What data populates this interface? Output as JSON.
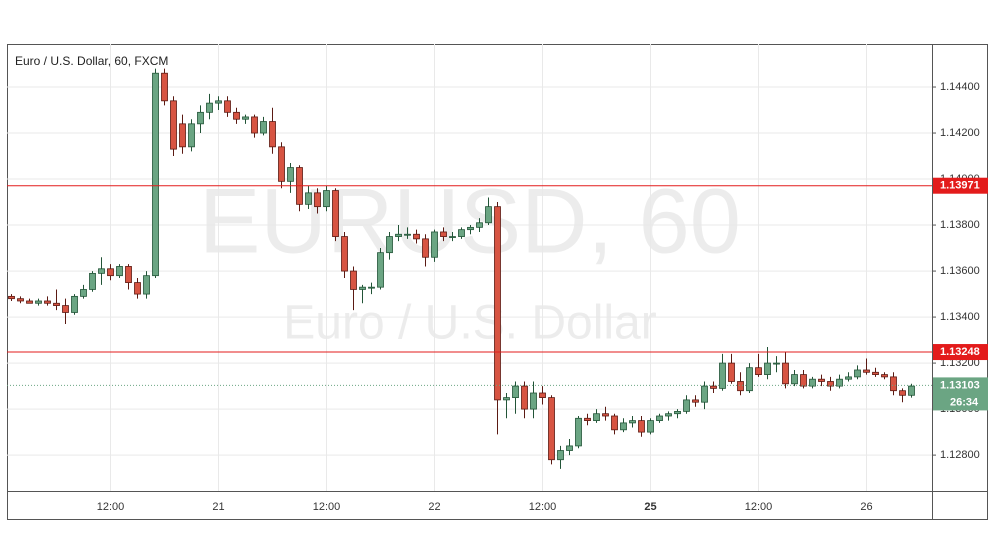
{
  "chart_data": {
    "type": "candlestick",
    "title": "Euro / U.S. Dollar, 60, FXCM",
    "watermark": [
      "EURUSD, 60",
      "Euro / U.S. Dollar"
    ],
    "categories": [
      null,
      null,
      null,
      null,
      null,
      null,
      null,
      null,
      null,
      null,
      null,
      "12:00",
      null,
      null,
      null,
      null,
      null,
      null,
      null,
      null,
      null,
      null,
      null,
      "21",
      null,
      null,
      null,
      null,
      null,
      null,
      null,
      null,
      null,
      null,
      null,
      "12:00",
      null,
      null,
      null,
      null,
      null,
      null,
      null,
      null,
      null,
      null,
      null,
      "22",
      null,
      null,
      null,
      null,
      null,
      null,
      null,
      null,
      null,
      null,
      null,
      "12:00",
      null,
      null,
      null,
      null,
      null,
      null,
      null,
      null,
      null,
      null,
      null,
      "25",
      null,
      null,
      null,
      null,
      null,
      null,
      null,
      null,
      null,
      null,
      null,
      "12:00",
      null,
      null,
      null,
      null,
      null,
      null,
      null,
      null,
      null,
      null,
      null,
      "26",
      null,
      null,
      null,
      null,
      null
    ],
    "bold_categories": [
      "25"
    ],
    "open": [
      1.1349,
      1.1348,
      1.1347,
      1.1346,
      1.1347,
      1.1346,
      1.1345,
      1.1342,
      1.1349,
      1.1352,
      1.1359,
      1.1361,
      1.1358,
      1.1362,
      1.1355,
      1.135,
      1.1358,
      1.1446,
      1.1434,
      1.1424,
      1.1414,
      1.1424,
      1.1429,
      1.1433,
      1.1434,
      1.1429,
      1.1426,
      1.1427,
      1.142,
      1.1425,
      1.1414,
      1.1399,
      1.1405,
      1.1389,
      1.1394,
      1.1388,
      1.1395,
      1.1375,
      1.136,
      1.1352,
      1.1353,
      1.1353,
      1.1368,
      1.1375,
      1.1376,
      1.1376,
      1.1374,
      1.1366,
      1.1377,
      1.1375,
      1.1375,
      1.1378,
      1.1379,
      1.1381,
      1.1388,
      1.1304,
      1.1305,
      1.131,
      1.13,
      1.1307,
      1.1305,
      1.1278,
      1.1282,
      1.1284,
      1.1296,
      1.1295,
      1.1298,
      1.1297,
      1.1291,
      1.1294,
      1.1295,
      1.129,
      1.1295,
      1.1297,
      1.1298,
      1.1299,
      1.1304,
      1.1303,
      1.131,
      1.1309,
      1.132,
      1.1312,
      1.1308,
      1.1318,
      1.1315,
      1.132,
      1.132,
      1.1311,
      1.1315,
      1.131,
      1.1313,
      1.1312,
      1.131,
      1.1313,
      1.1314,
      1.1317,
      1.1316,
      1.1315,
      1.1314,
      1.1308,
      1.1306
    ],
    "high": [
      1.135,
      1.1349,
      1.1348,
      1.1348,
      1.1349,
      1.1352,
      1.1348,
      1.135,
      1.1354,
      1.136,
      1.1366,
      1.1363,
      1.1363,
      1.1363,
      1.1357,
      1.136,
      1.1448,
      1.1448,
      1.1436,
      1.1428,
      1.1426,
      1.1432,
      1.1437,
      1.1436,
      1.1436,
      1.1431,
      1.1428,
      1.1428,
      1.1427,
      1.1431,
      1.1416,
      1.1407,
      1.1406,
      1.1397,
      1.1396,
      1.1397,
      1.1396,
      1.1377,
      1.1362,
      1.1354,
      1.1355,
      1.137,
      1.1377,
      1.138,
      1.1379,
      1.1378,
      1.1376,
      1.1378,
      1.1379,
      1.1377,
      1.1379,
      1.138,
      1.1383,
      1.1392,
      1.139,
      1.1307,
      1.1312,
      1.1312,
      1.1312,
      1.131,
      1.1306,
      1.1284,
      1.1287,
      1.1297,
      1.1298,
      1.13,
      1.1301,
      1.1298,
      1.1296,
      1.1297,
      1.1297,
      1.1296,
      1.1298,
      1.1299,
      1.13,
      1.1306,
      1.1306,
      1.1312,
      1.1312,
      1.1324,
      1.1324,
      1.1316,
      1.132,
      1.1324,
      1.1327,
      1.1323,
      1.1325,
      1.1317,
      1.1317,
      1.1314,
      1.1315,
      1.1314,
      1.1315,
      1.1316,
      1.1319,
      1.1322,
      1.1318,
      1.1316,
      1.1316,
      1.1309,
      1.1311
    ],
    "low": [
      1.1347,
      1.1346,
      1.1346,
      1.1345,
      1.1345,
      1.1343,
      1.1337,
      1.1341,
      1.1348,
      1.1351,
      1.1354,
      1.1356,
      1.1357,
      1.1352,
      1.1348,
      1.1348,
      1.1357,
      1.1432,
      1.141,
      1.1411,
      1.1412,
      1.142,
      1.1426,
      1.143,
      1.1427,
      1.1424,
      1.1424,
      1.1418,
      1.1419,
      1.1411,
      1.1396,
      1.1394,
      1.1386,
      1.1387,
      1.1385,
      1.1386,
      1.1373,
      1.1357,
      1.1343,
      1.1346,
      1.135,
      1.1352,
      1.1365,
      1.1373,
      1.1374,
      1.1372,
      1.1362,
      1.1364,
      1.1373,
      1.1373,
      1.1374,
      1.1376,
      1.1377,
      1.138,
      1.1289,
      1.1296,
      1.1298,
      1.1296,
      1.1296,
      1.1302,
      1.1276,
      1.1274,
      1.128,
      1.1283,
      1.1293,
      1.1294,
      1.1295,
      1.1289,
      1.129,
      1.1292,
      1.1288,
      1.1289,
      1.1294,
      1.1295,
      1.1296,
      1.1298,
      1.1301,
      1.13,
      1.1307,
      1.1308,
      1.1311,
      1.1306,
      1.1307,
      1.1314,
      1.1313,
      1.1316,
      1.1309,
      1.131,
      1.1309,
      1.1309,
      1.131,
      1.1308,
      1.1309,
      1.1312,
      1.1313,
      1.1315,
      1.1314,
      1.1313,
      1.1306,
      1.1303,
      1.1305
    ],
    "close": [
      1.1348,
      1.1347,
      1.1346,
      1.1347,
      1.1346,
      1.1345,
      1.1342,
      1.1349,
      1.1352,
      1.1359,
      1.1361,
      1.1358,
      1.1362,
      1.1355,
      1.135,
      1.1358,
      1.1446,
      1.1434,
      1.1413,
      1.1414,
      1.1424,
      1.1429,
      1.1433,
      1.1434,
      1.1429,
      1.1426,
      1.1427,
      1.142,
      1.1425,
      1.1414,
      1.1399,
      1.1405,
      1.1389,
      1.1394,
      1.1388,
      1.1395,
      1.1375,
      1.136,
      1.1352,
      1.1353,
      1.1353,
      1.1368,
      1.1375,
      1.1376,
      1.1376,
      1.1374,
      1.1366,
      1.1377,
      1.1375,
      1.1375,
      1.1378,
      1.1379,
      1.1381,
      1.1388,
      1.1304,
      1.1305,
      1.131,
      1.13,
      1.1307,
      1.1305,
      1.1278,
      1.1282,
      1.1284,
      1.1296,
      1.1295,
      1.1298,
      1.1297,
      1.1291,
      1.1294,
      1.1295,
      1.129,
      1.1295,
      1.1297,
      1.1298,
      1.1299,
      1.1304,
      1.1303,
      1.131,
      1.1309,
      1.132,
      1.1312,
      1.1308,
      1.1318,
      1.1315,
      1.132,
      1.132,
      1.1311,
      1.1315,
      1.131,
      1.1313,
      1.1312,
      1.131,
      1.1313,
      1.1314,
      1.1317,
      1.1316,
      1.1315,
      1.1314,
      1.1308,
      1.1306,
      1.131
    ],
    "up_color": "#6ba583",
    "up_border": "#225437",
    "down_color": "#d75442",
    "down_border": "#5b1a13",
    "ylim": [
      1.12644,
      1.14587
    ],
    "yticks": [
      {
        "value": 1.128,
        "label": "1.12800"
      },
      {
        "value": 1.13,
        "label": "1.13000"
      },
      {
        "value": 1.132,
        "label": "1.13200"
      },
      {
        "value": 1.134,
        "label": "1.13400"
      },
      {
        "value": 1.136,
        "label": "1.13600"
      },
      {
        "value": 1.138,
        "label": "1.13800"
      },
      {
        "value": 1.14,
        "label": "1.14000"
      },
      {
        "value": 1.142,
        "label": "1.14200"
      },
      {
        "value": 1.144,
        "label": "1.14400"
      }
    ],
    "grid": true,
    "levels": [
      {
        "value": 1.13971,
        "color": "#e31b1b"
      },
      {
        "value": 1.13248,
        "color": "#e31b1b"
      }
    ],
    "last_price": {
      "value": 1.13103,
      "color": "#6ba583",
      "countdown": "26:34"
    }
  }
}
